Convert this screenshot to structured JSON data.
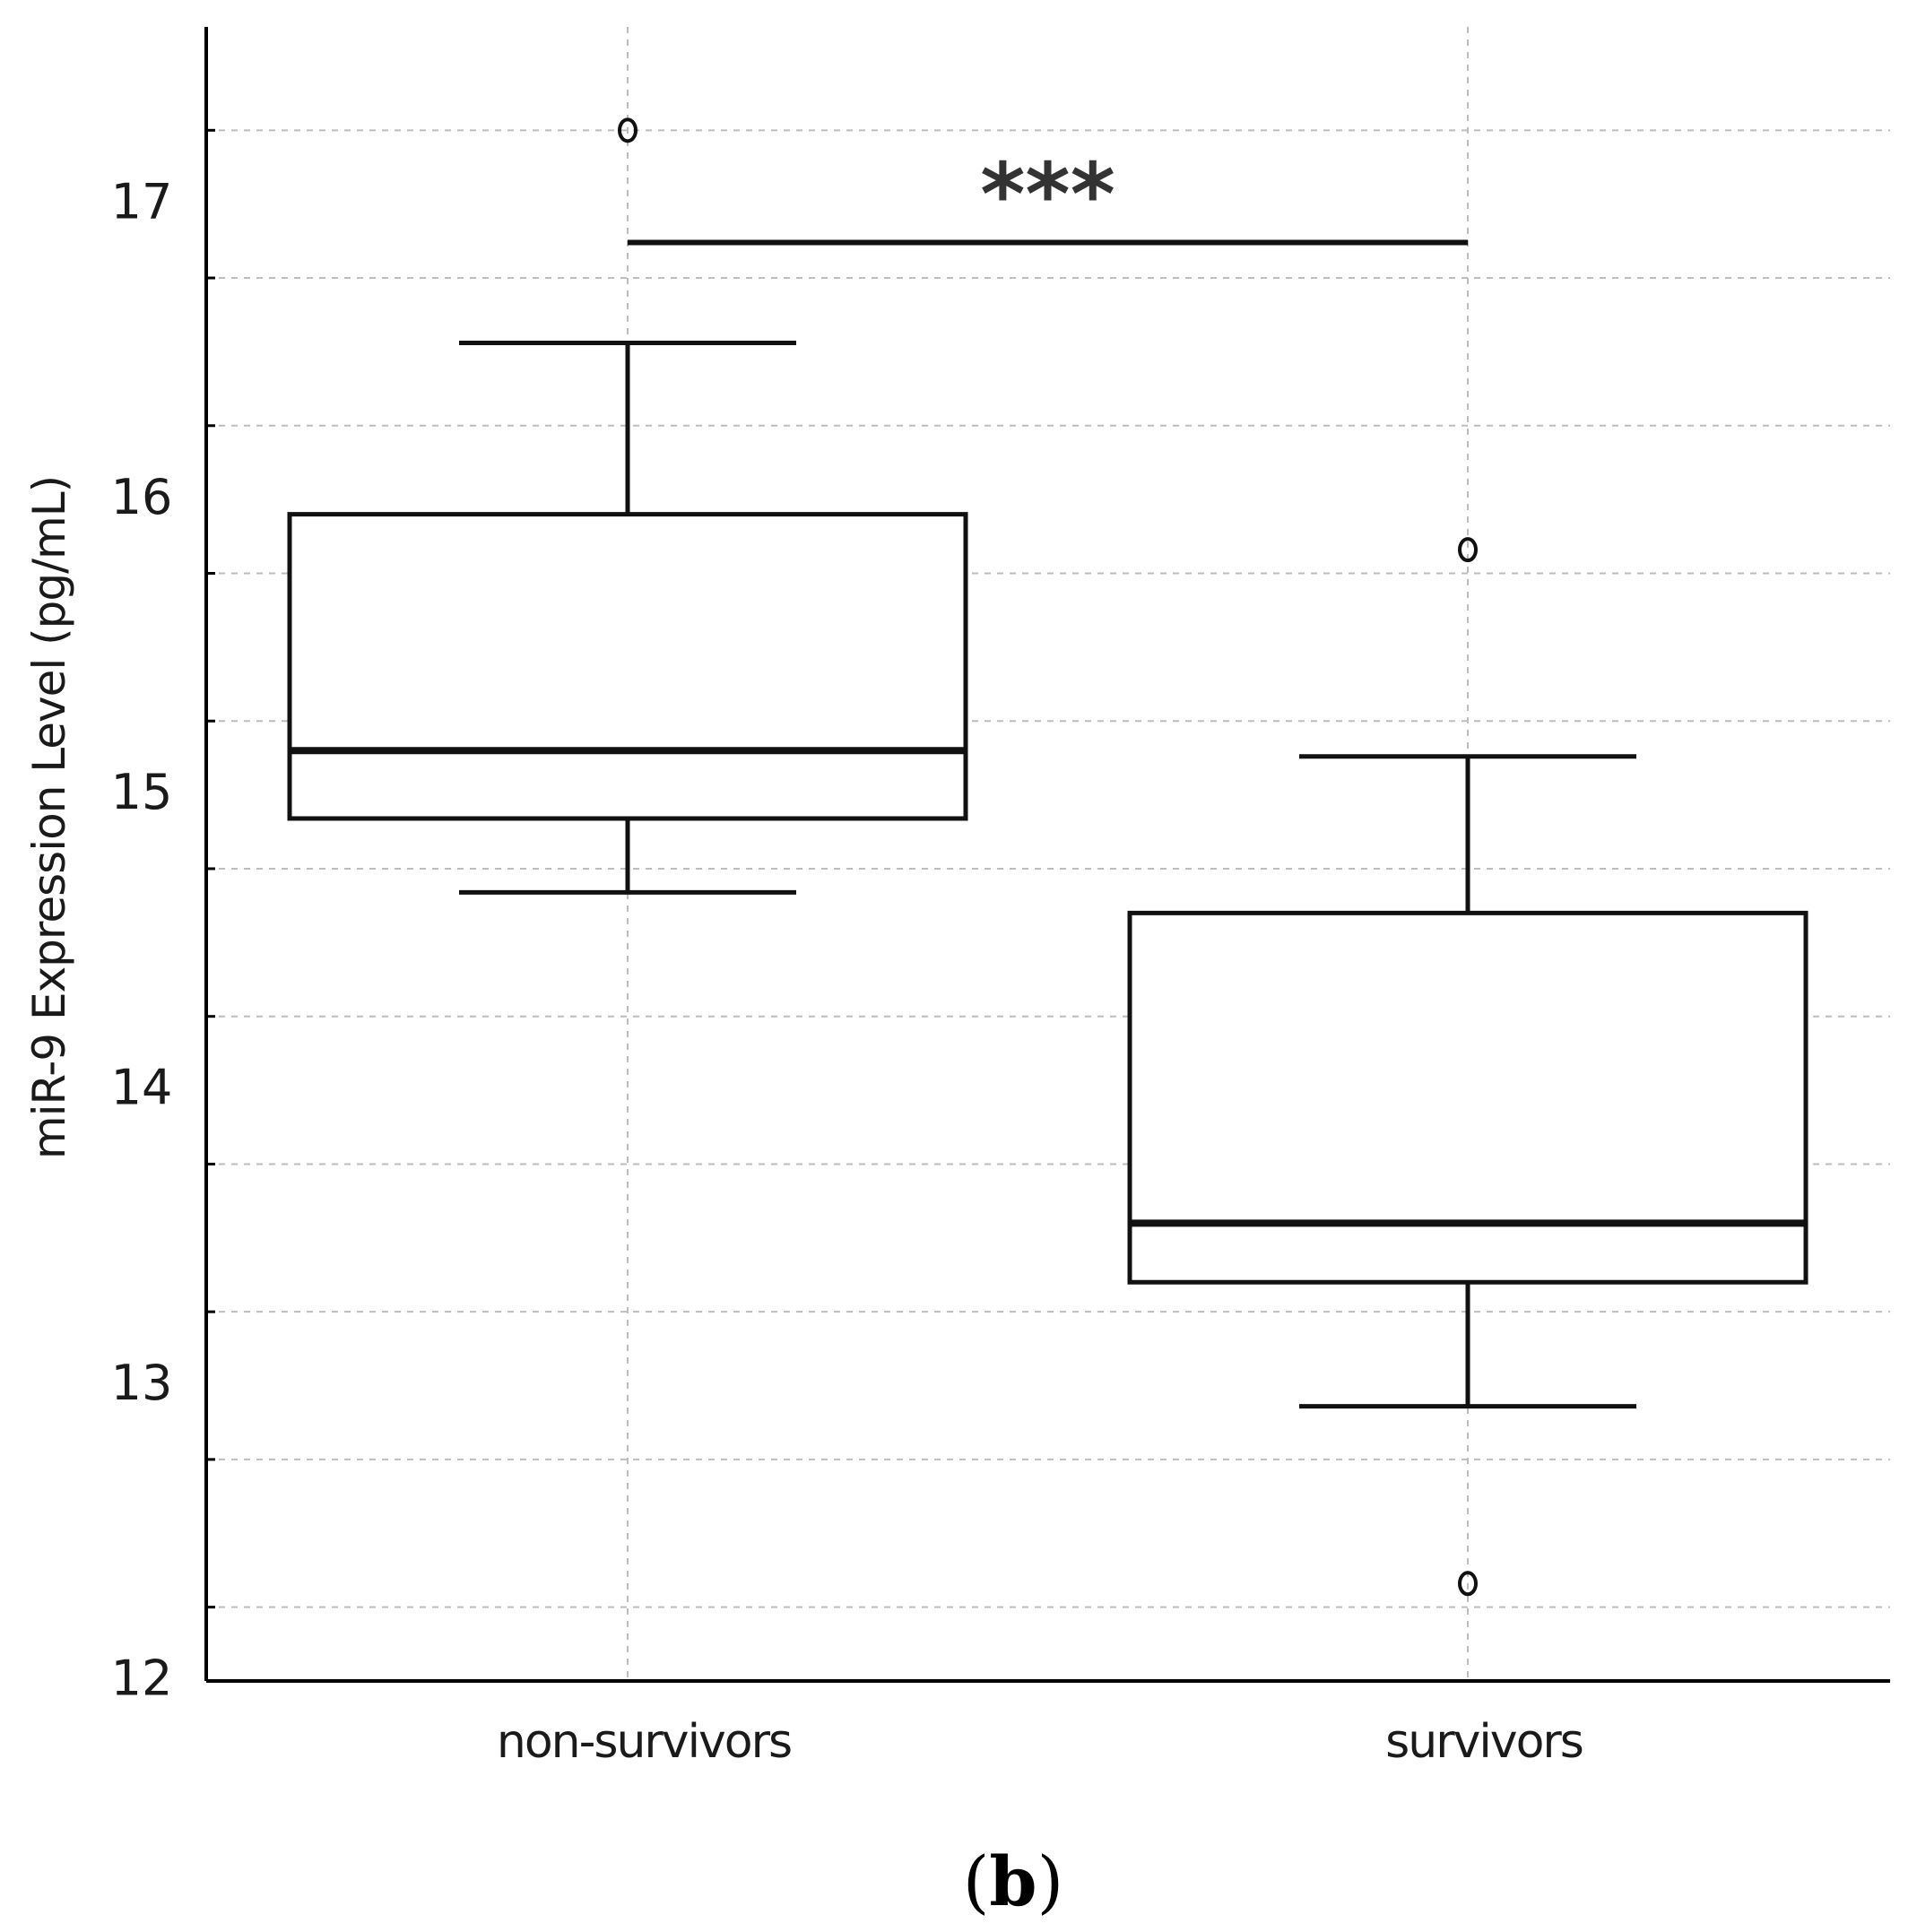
{
  "chart_data": {
    "type": "box",
    "ylabel": "miR-9 Expression Level (pg/mL)",
    "xlabel": "",
    "ylim": [
      11.75,
      17.35
    ],
    "yticks": [
      12,
      13,
      14,
      15,
      16,
      17
    ],
    "grid": true,
    "categories": [
      "non-survivors",
      "survivors"
    ],
    "boxes": [
      {
        "category": "non-survivors",
        "whisker_low": 14.42,
        "q1": 14.67,
        "median": 14.9,
        "q3": 15.7,
        "whisker_high": 16.28,
        "outliers": [
          17.0
        ]
      },
      {
        "category": "survivors",
        "whisker_low": 12.68,
        "q1": 13.1,
        "median": 13.3,
        "q3": 14.35,
        "whisker_high": 14.88,
        "outliers": [
          15.58,
          12.08
        ]
      }
    ],
    "significance": {
      "from": "non-survivors",
      "to": "survivors",
      "y": 16.62,
      "label": "***"
    }
  },
  "panel_label": {
    "open": "(",
    "letter": "b",
    "close": ")"
  }
}
